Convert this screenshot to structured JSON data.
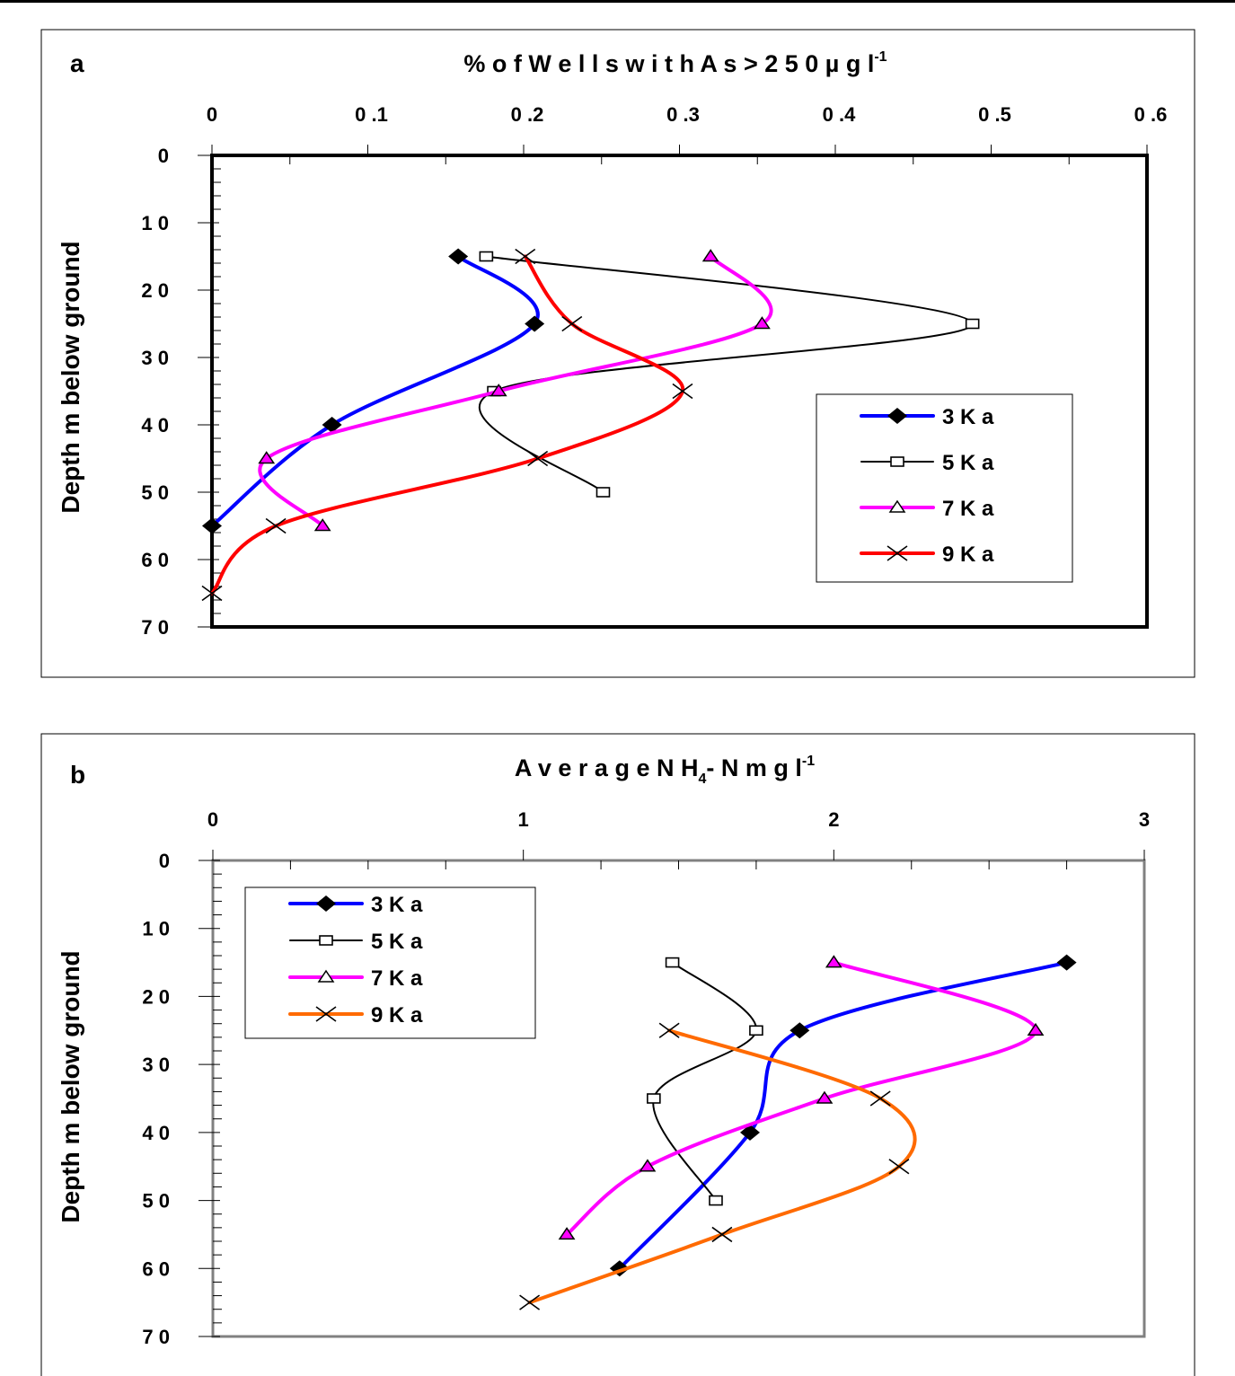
{
  "chart_data": [
    {
      "panel": "a",
      "type": "line",
      "title": "% of Wells with As > 250 µg l-1",
      "title_main": "% o f W e l l s w i t h A s > 2 5 0 µ g l",
      "title_sup": "-1",
      "xlabel": "% of Wells with As > 250 µg l-1",
      "ylabel": "Depth m below ground",
      "xlim": [
        0,
        0.6
      ],
      "ylim": [
        0,
        70
      ],
      "x_ticks": [
        "0",
        "0 .1",
        "0 .2",
        "0 .3",
        "0 .4",
        "0 .5",
        "0 .6"
      ],
      "x_tick_values": [
        0,
        0.1,
        0.2,
        0.3,
        0.4,
        0.5,
        0.6
      ],
      "y_ticks": [
        "0",
        "1 0",
        "2 0",
        "3 0",
        "4 0",
        "5 0",
        "6 0",
        "7 0"
      ],
      "y_tick_values": [
        0,
        10,
        20,
        30,
        40,
        50,
        60,
        70
      ],
      "y_inverted": true,
      "x_axis_position": "top",
      "grid": false,
      "legend_position": "lower-right-inside",
      "series": [
        {
          "name": "3 K a",
          "color": "#0000ff",
          "marker": "diamond",
          "width": 4,
          "points": [
            [
              0.158,
              15
            ],
            [
              0.207,
              25
            ],
            [
              0.077,
              40
            ],
            [
              0.0,
              55
            ]
          ]
        },
        {
          "name": "5 K a",
          "color": "#000000",
          "marker": "square",
          "width": 2,
          "points": [
            [
              0.176,
              15
            ],
            [
              0.488,
              25
            ],
            [
              0.181,
              35
            ],
            [
              0.251,
              50
            ]
          ]
        },
        {
          "name": "7 K a",
          "color": "#ff00ff",
          "marker": "triangle",
          "width": 4,
          "points": [
            [
              0.32,
              15
            ],
            [
              0.353,
              25
            ],
            [
              0.184,
              35
            ],
            [
              0.035,
              45
            ],
            [
              0.071,
              55
            ]
          ]
        },
        {
          "name": "9 K a",
          "color": "#ff0000",
          "marker": "x",
          "width": 4,
          "points": [
            [
              0.201,
              15
            ],
            [
              0.231,
              25
            ],
            [
              0.302,
              35
            ],
            [
              0.209,
              45
            ],
            [
              0.041,
              55
            ],
            [
              0.0,
              65
            ]
          ]
        }
      ]
    },
    {
      "panel": "b",
      "type": "line",
      "title": "Average NH4-N mg l-1",
      "title_main_1": "A v e r a g e N H",
      "title_sub": "4",
      "title_main_2": "- N m g l",
      "title_sup": "-1",
      "xlabel": "Average NH4-N mg l-1",
      "ylabel": "Depth m below ground",
      "xlim": [
        0,
        3
      ],
      "ylim": [
        0,
        70
      ],
      "x_ticks": [
        "0",
        "1",
        "2",
        "3"
      ],
      "x_tick_values": [
        0,
        1,
        2,
        3
      ],
      "y_ticks": [
        "0",
        "1 0",
        "2 0",
        "3 0",
        "4 0",
        "5 0",
        "6 0",
        "7 0"
      ],
      "y_tick_values": [
        0,
        10,
        20,
        30,
        40,
        50,
        60,
        70
      ],
      "y_inverted": true,
      "x_axis_position": "top",
      "grid": false,
      "legend_position": "upper-left-inside",
      "series": [
        {
          "name": "3 K a",
          "color": "#0000ff",
          "marker": "diamond",
          "width": 4,
          "points": [
            [
              2.75,
              15
            ],
            [
              1.89,
              25
            ],
            [
              1.73,
              40
            ],
            [
              1.31,
              60
            ]
          ]
        },
        {
          "name": "5 K a",
          "color": "#000000",
          "marker": "square",
          "width": 2,
          "points": [
            [
              1.48,
              15
            ],
            [
              1.75,
              25
            ],
            [
              1.42,
              35
            ],
            [
              1.62,
              50
            ]
          ]
        },
        {
          "name": "7 K a",
          "color": "#ff00ff",
          "marker": "triangle",
          "width": 4,
          "points": [
            [
              2.0,
              15
            ],
            [
              2.65,
              25
            ],
            [
              1.97,
              35
            ],
            [
              1.4,
              45
            ],
            [
              1.14,
              55
            ]
          ]
        },
        {
          "name": "9 K a",
          "color": "#ff6a00",
          "marker": "x",
          "width": 4,
          "points": [
            [
              1.47,
              25
            ],
            [
              2.15,
              35
            ],
            [
              2.21,
              45
            ],
            [
              1.64,
              55
            ],
            [
              1.02,
              65
            ]
          ]
        }
      ]
    }
  ],
  "panels": {
    "a": {
      "letter": "a"
    },
    "b": {
      "letter": "b"
    }
  }
}
